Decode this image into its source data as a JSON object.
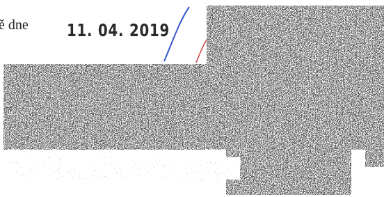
{
  "text": {
    "prefix": "ě dne",
    "date": "11. 04. 2019"
  }
}
